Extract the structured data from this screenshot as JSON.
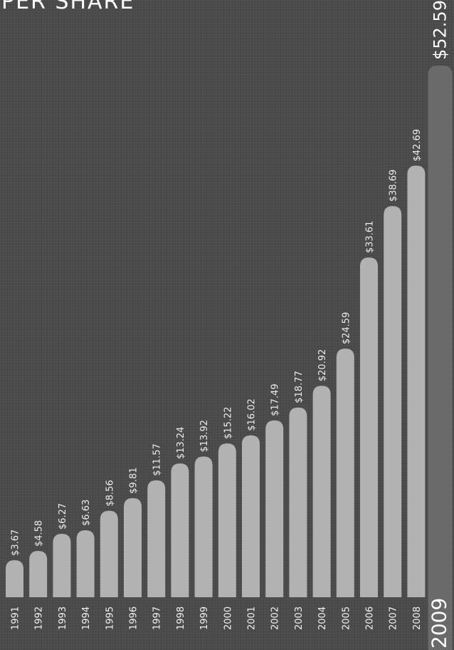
{
  "title": "PER SHARE",
  "colors": {
    "background": "#4a4a4a",
    "bar": "#b2b2b2",
    "highlight_bar": "#6a6a6a",
    "text": "#ffffff"
  },
  "chart_data": {
    "type": "bar",
    "orientation": "vertical (image rotated 90°; labels read bottom-to-top)",
    "title": "PER SHARE",
    "categories": [
      "1991",
      "1992",
      "1993",
      "1994",
      "1995",
      "1996",
      "1997",
      "1998",
      "1999",
      "2000",
      "2001",
      "2002",
      "2003",
      "2004",
      "2005",
      "2006",
      "2007",
      "2008",
      "2009"
    ],
    "values": [
      3.67,
      4.58,
      6.27,
      6.63,
      8.56,
      9.81,
      11.57,
      13.24,
      13.92,
      15.22,
      16.02,
      17.49,
      18.77,
      20.92,
      24.59,
      33.61,
      38.69,
      42.69,
      52.59
    ],
    "labels": [
      "$3.67",
      "$4.58",
      "$6.27",
      "$6.63",
      "$8.56",
      "$9.81",
      "$11.57",
      "$13.24",
      "$13.92",
      "$15.22",
      "$16.02",
      "$17.49",
      "$18.77",
      "$20.92",
      "$24.59",
      "$33.61",
      "$38.69",
      "$42.69",
      "$52.59"
    ],
    "highlight": "2009",
    "ylim": [
      0,
      52.59
    ],
    "grid": false,
    "legend": "none"
  }
}
